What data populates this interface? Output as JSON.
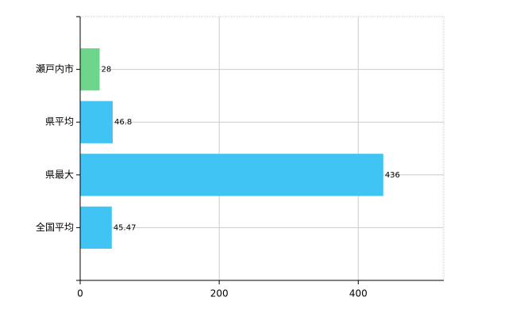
{
  "chart_data": {
    "type": "hbar",
    "categories": [
      "瀬戸内市",
      "県平均",
      "県最大",
      "全国平均"
    ],
    "values": [
      28,
      46.8,
      436,
      45.47
    ],
    "colors": [
      "#6dd58c",
      "#40c4f4",
      "#40c4f4",
      "#40c4f4"
    ],
    "xlim": [
      0,
      523
    ],
    "xticks": [
      0,
      200,
      400
    ],
    "grid": true
  }
}
